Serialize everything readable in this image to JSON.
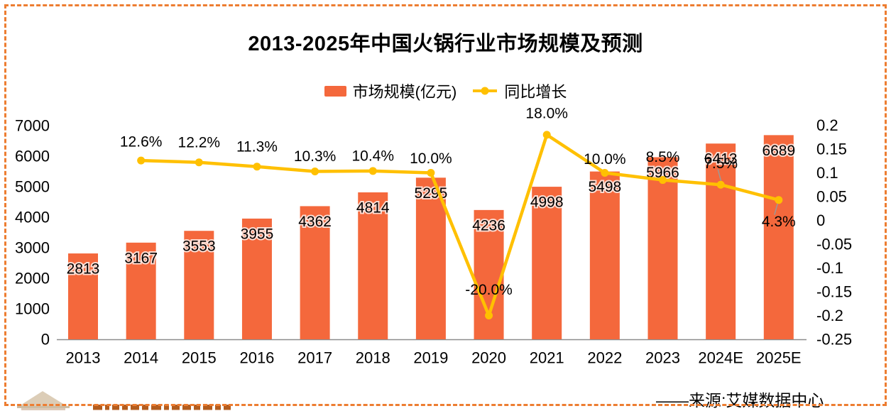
{
  "title": "2013-2025年中国火锅行业市场规模及预测",
  "legend": {
    "bar": {
      "label": "市场规模(亿元)",
      "swatch_color": "#F4683C"
    },
    "line": {
      "label": "同比增长",
      "color": "#FFC000"
    }
  },
  "source": "——来源:艾媒数据中心",
  "colors": {
    "bar": "#F4683C",
    "line": "#FFC000",
    "axis_line": "#8C8C8C",
    "border": "#ED7D31",
    "text": "#000000",
    "leader_line": "#999999",
    "watermark_fragments": "#B35C1E",
    "watermark_logo": "#C6AC88"
  },
  "chart_data": {
    "type": "bar+line combo",
    "title": "2013-2025年中国火锅行业市场规模及预测",
    "categories": [
      "2013",
      "2014",
      "2015",
      "2016",
      "2017",
      "2018",
      "2019",
      "2020",
      "2021",
      "2022",
      "2023",
      "2024E",
      "2025E"
    ],
    "series": [
      {
        "name": "市场规模(亿元)",
        "type": "bar",
        "axis": "left",
        "color": "#F4683C",
        "values": [
          2813,
          3167,
          3553,
          3955,
          4362,
          4814,
          5295,
          4236,
          4998,
          5498,
          5966,
          6413,
          6689
        ],
        "value_labels": [
          "2813",
          "3167",
          "3553",
          "3955",
          "4362",
          "4814",
          "5295",
          "4236",
          "4998",
          "5498",
          "5966",
          "6413",
          "6689"
        ]
      },
      {
        "name": "同比增长",
        "type": "line",
        "axis": "right",
        "color": "#FFC000",
        "values": [
          null,
          0.126,
          0.122,
          0.113,
          0.103,
          0.104,
          0.1,
          -0.2,
          0.18,
          0.1,
          0.085,
          0.075,
          0.043
        ],
        "point_labels": [
          null,
          "12.6%",
          "12.2%",
          "11.3%",
          "10.3%",
          "10.4%",
          "10.0%",
          "-20.0%",
          "18.0%",
          "10.0%",
          "8.5%",
          "7.5%",
          "4.3%"
        ]
      }
    ],
    "left_axis": {
      "tick_labels": [
        "0",
        "1000",
        "2000",
        "3000",
        "4000",
        "5000",
        "6000",
        "7000"
      ],
      "range": [
        0,
        7000
      ]
    },
    "right_axis": {
      "tick_labels": [
        "0.2",
        "0.15",
        "0.1",
        "0.05",
        "0",
        "-0.05",
        "-0.1",
        "-0.15",
        "-0.2",
        "-0.25"
      ],
      "range": [
        -0.25,
        0.2
      ]
    },
    "grid": false,
    "legend_position": "top-center"
  },
  "watermark": {
    "logo": "faint building/pyramid logo, bottom-left, partially cut off",
    "cut_text": "dark orange bold text fragments cut off by bottom edge"
  }
}
